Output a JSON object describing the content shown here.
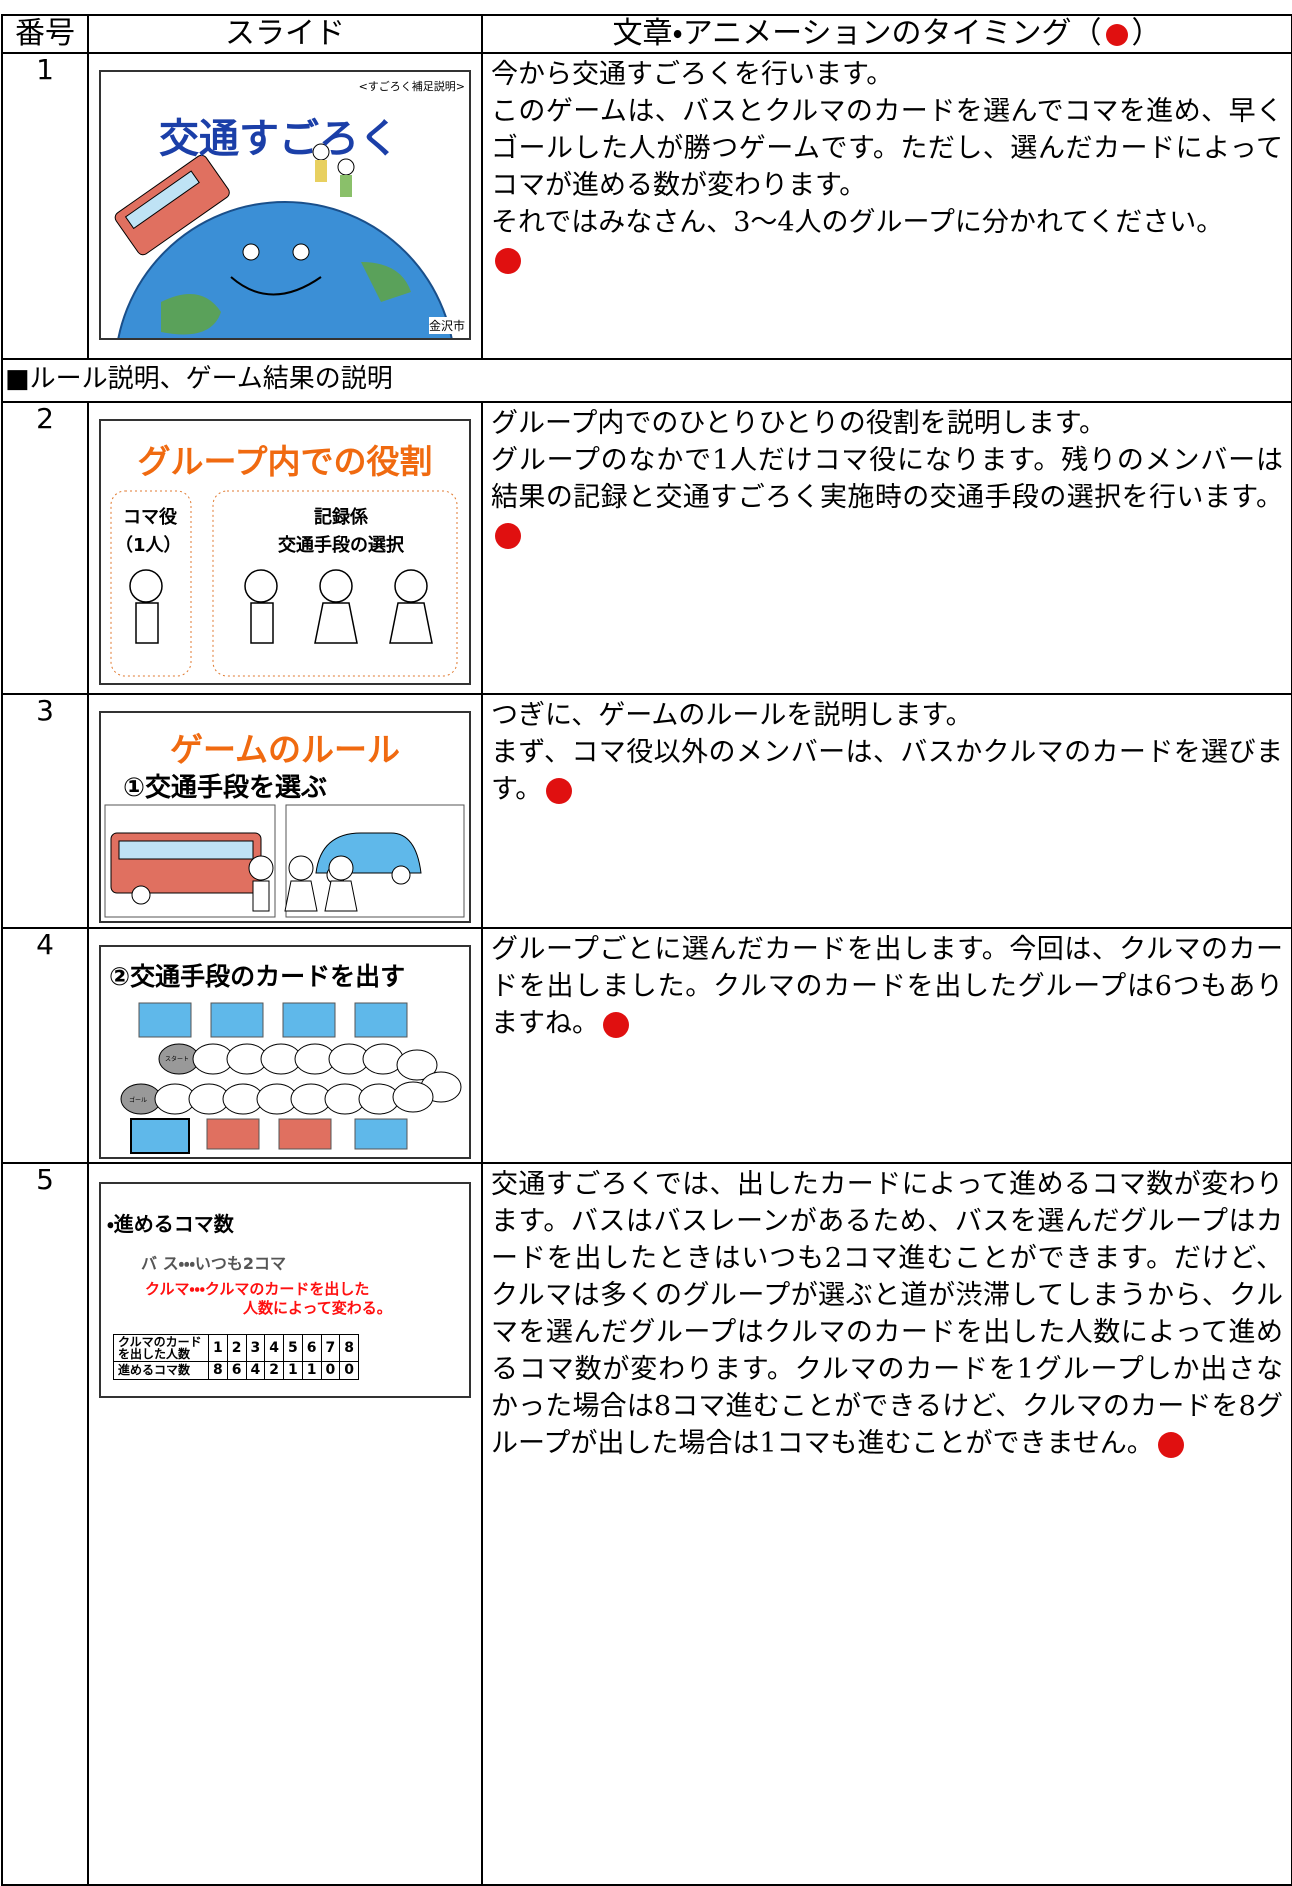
{
  "header": {
    "number": "番号",
    "slide": "スライド",
    "text_before": "文章・アニメーションのタイミング（",
    "text_after": "）"
  },
  "section": "■ルール説明、ゲーム結果の説明",
  "rows": [
    {
      "number": "1",
      "slide": {
        "note": "<すごろく補足説明>",
        "title": "交通すごろく",
        "credit": "金沢市"
      },
      "lines": [
        "今から交通すごろくを行います。",
        "このゲームは、バスとクルマのカードを選んでコマを進め、早くゴールした人が勝つゲームです。ただし、選んだカードによってコマが進める数が変わります。",
        "それではみなさん、3〜4人のグループに分かれてください。"
      ]
    },
    {
      "number": "2",
      "slide": {
        "title": "グループ内での役割",
        "left_1": "コマ役",
        "left_2": "（1人）",
        "right_1": "記録係",
        "right_2": "交通手段の選択"
      },
      "lines": [
        "グループ内でのひとりひとりの役割を説明します。",
        "グループのなかで1人だけコマ役になります。残りのメンバーは結果の記録と交通すごろく実施時の交通手段の選択を行います。"
      ]
    },
    {
      "number": "3",
      "slide": {
        "title": "ゲームのルール",
        "subtitle": "①交通手段を選ぶ"
      },
      "lines": [
        "つぎに、ゲームのルールを説明します。",
        "まず、コマ役以外のメンバーは、バスかクルマのカードを選びます。"
      ]
    },
    {
      "number": "4",
      "slide": {
        "title": "②交通手段のカードを出す",
        "start": "スタート",
        "goal": "ゴール"
      },
      "lines": [
        "グループごとに選んだカードを出します。今回は、クルマのカードを出しました。クルマのカードを出したグループは6つもありますね。"
      ]
    },
    {
      "number": "5",
      "slide": {
        "title": "・進めるコマ数",
        "bus": "バ ス・・・いつも2コマ",
        "car_1": "クルマ・・・クルマのカードを出した",
        "car_2": "人数によって変わる。",
        "table_label_1": "クルマのカードを出した人数",
        "table_label_2": "進めるコマ数",
        "people": [
          "1",
          "2",
          "3",
          "4",
          "5",
          "6",
          "7",
          "8"
        ],
        "steps": [
          "8",
          "6",
          "4",
          "2",
          "1",
          "1",
          "0",
          "0"
        ]
      },
      "lines": [
        "交通すごろくでは、出したカードによって進めるコマ数が変わります。バスはバスレーンがあるため、バスを選んだグループはカードを出したときはいつも2コマ進むことができます。だけど、クルマは多くのグループが選ぶと道が渋滞してしまうから、クルマを選んだグループはクルマのカードを出した人数によって進めるコマ数が変わります。クルマのカードを1グループしか出さなかった場合は8コマ進むことができるけど、クルマのカードを8グループが出した場合は1コマも進むことができません。"
      ]
    }
  ]
}
